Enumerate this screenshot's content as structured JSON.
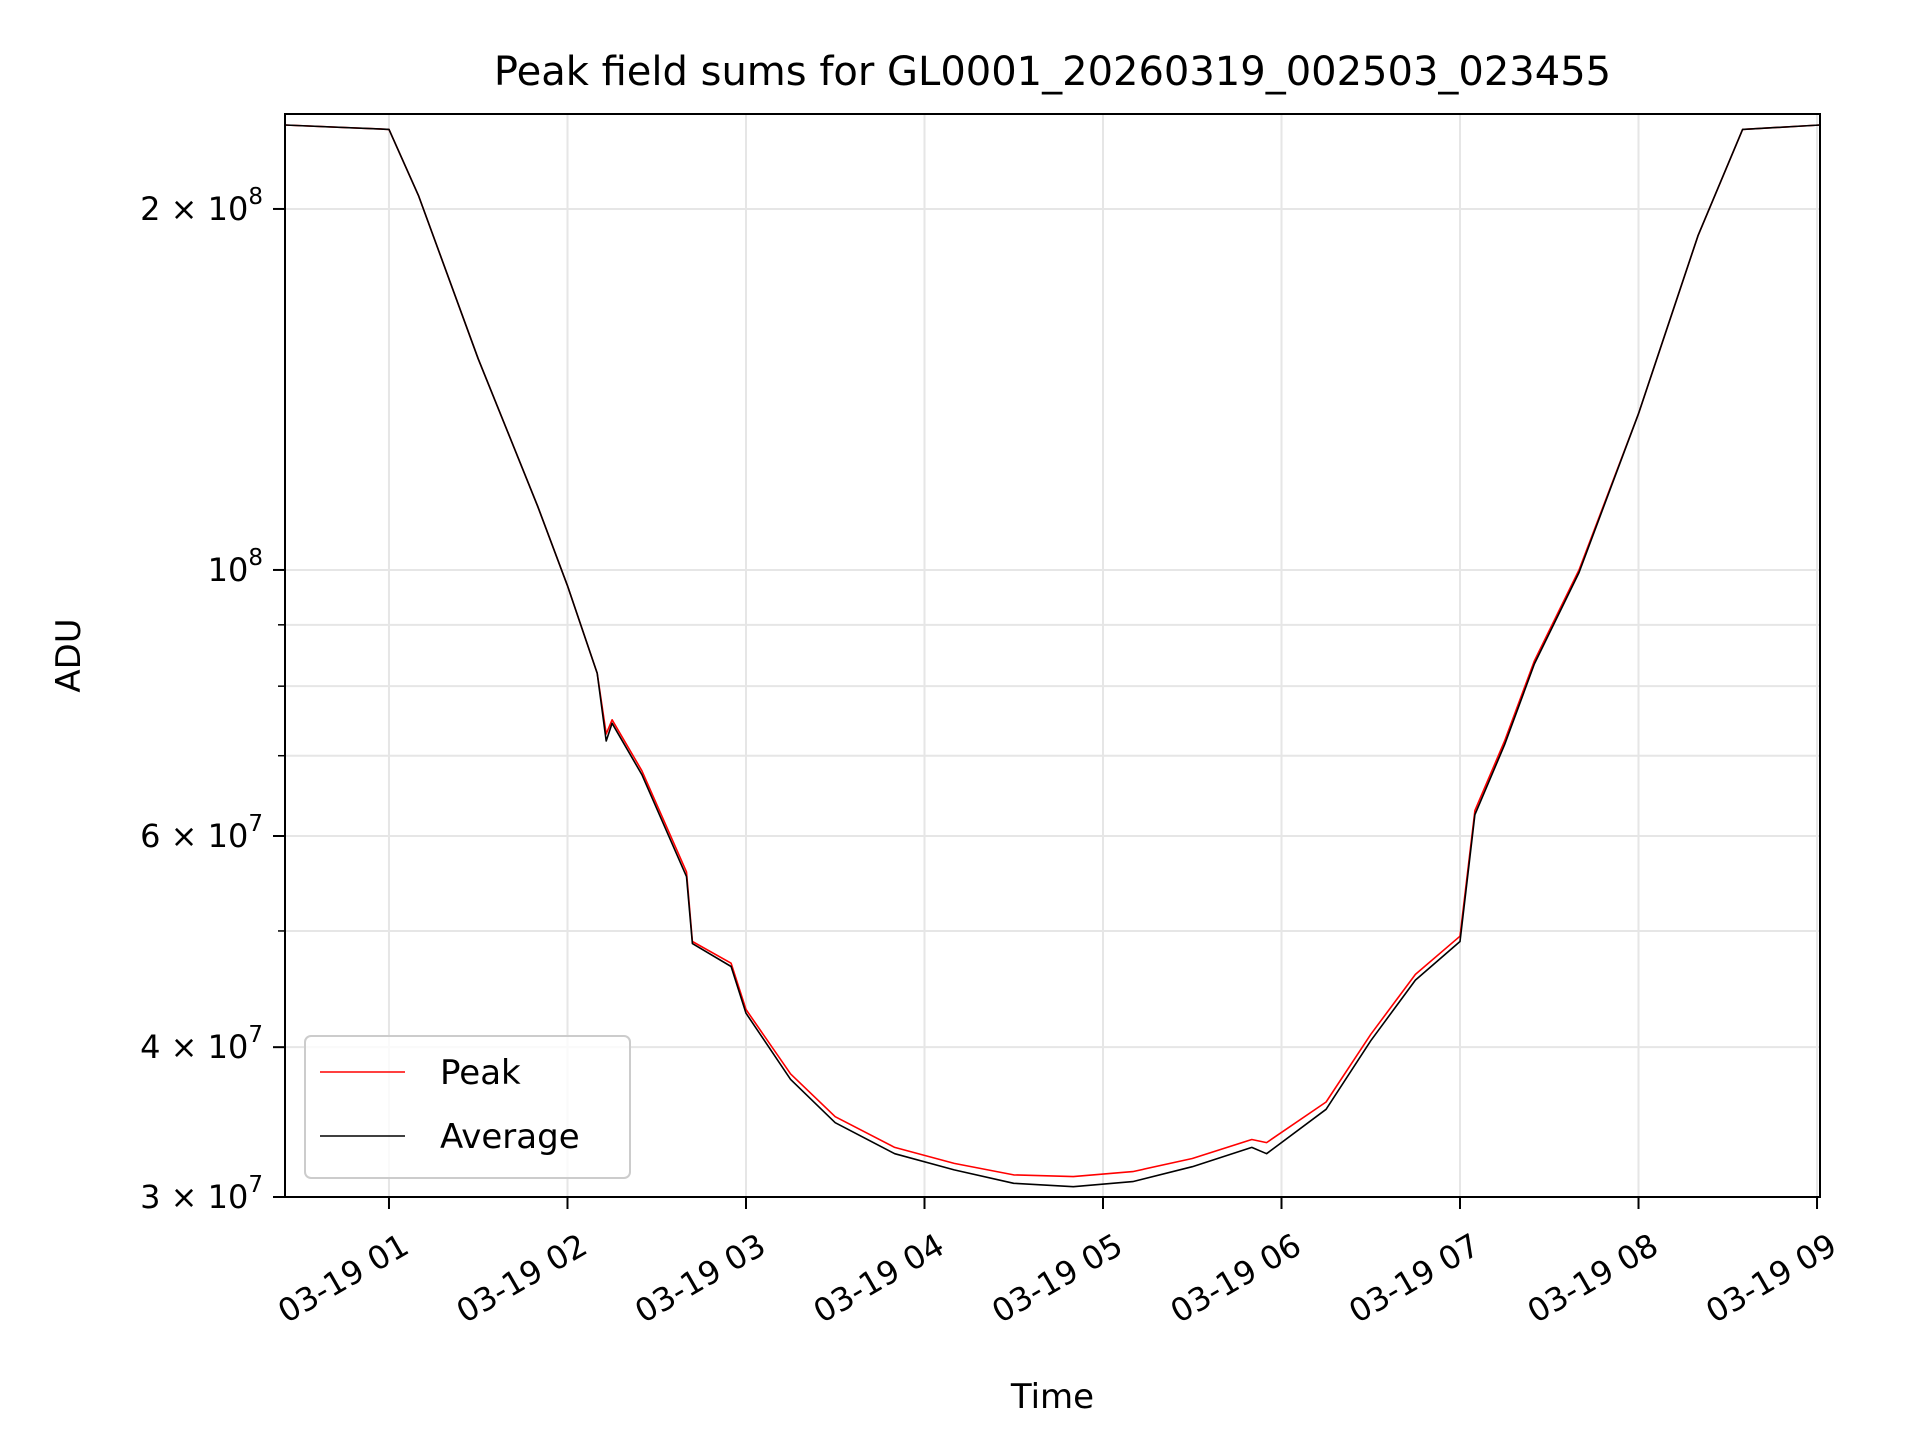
{
  "chart_data": {
    "type": "line",
    "title": "Peak field sums for GL0001_20260319_002503_023455",
    "xlabel": "Time",
    "ylabel": "ADU",
    "x_scale": "time",
    "y_scale": "log",
    "xlim": [
      "2026-03-19T00:25:03",
      "2026-03-19T09:01:00"
    ],
    "ylim": [
      30000000,
      240000000
    ],
    "x_ticks": [
      {
        "value": "2026-03-19T01:00",
        "label": "03-19 01"
      },
      {
        "value": "2026-03-19T02:00",
        "label": "03-19 02"
      },
      {
        "value": "2026-03-19T03:00",
        "label": "03-19 03"
      },
      {
        "value": "2026-03-19T04:00",
        "label": "03-19 04"
      },
      {
        "value": "2026-03-19T05:00",
        "label": "03-19 05"
      },
      {
        "value": "2026-03-19T06:00",
        "label": "03-19 06"
      },
      {
        "value": "2026-03-19T07:00",
        "label": "03-19 07"
      },
      {
        "value": "2026-03-19T08:00",
        "label": "03-19 08"
      },
      {
        "value": "2026-03-19T09:00",
        "label": "03-19 09"
      }
    ],
    "y_major_ticks": [
      {
        "value": 30000000,
        "mantissa": "3",
        "exponent": "7"
      },
      {
        "value": 40000000,
        "mantissa": "4",
        "exponent": "7"
      },
      {
        "value": 60000000,
        "mantissa": "6",
        "exponent": "7"
      },
      {
        "value": 100000000,
        "mantissa": "",
        "exponent": "8"
      },
      {
        "value": 200000000,
        "mantissa": "2",
        "exponent": "8"
      }
    ],
    "y_minor_ticks": [
      50000000,
      70000000,
      80000000,
      90000000
    ],
    "grid": true,
    "legend_position": "lower-left",
    "series": [
      {
        "name": "Peak",
        "color": "#ff0000",
        "x": [
          "2026-03-19T00:25",
          "2026-03-19T01:00",
          "2026-03-19T01:10",
          "2026-03-19T01:30",
          "2026-03-19T01:50",
          "2026-03-19T02:00",
          "2026-03-19T02:10",
          "2026-03-19T02:13",
          "2026-03-19T02:15",
          "2026-03-19T02:25",
          "2026-03-19T02:40",
          "2026-03-19T02:42",
          "2026-03-19T02:55",
          "2026-03-19T03:00",
          "2026-03-19T03:15",
          "2026-03-19T03:30",
          "2026-03-19T03:50",
          "2026-03-19T04:10",
          "2026-03-19T04:30",
          "2026-03-19T04:50",
          "2026-03-19T05:10",
          "2026-03-19T05:30",
          "2026-03-19T05:50",
          "2026-03-19T05:55",
          "2026-03-19T06:15",
          "2026-03-19T06:30",
          "2026-03-19T06:45",
          "2026-03-19T07:00",
          "2026-03-19T07:05",
          "2026-03-19T07:15",
          "2026-03-19T07:25",
          "2026-03-19T07:40",
          "2026-03-19T08:00",
          "2026-03-19T08:20",
          "2026-03-19T08:35",
          "2026-03-19T09:01"
        ],
        "y": [
          235000000,
          233000000,
          205000000,
          150000000,
          113000000,
          97000000,
          82000000,
          73000000,
          75000000,
          68000000,
          56000000,
          49000000,
          47000000,
          43000000,
          38000000,
          35000000,
          33000000,
          32000000,
          31300000,
          31200000,
          31500000,
          32300000,
          33500000,
          33300000,
          36000000,
          41000000,
          46000000,
          49500000,
          63000000,
          72000000,
          84000000,
          100000000,
          135000000,
          190000000,
          233000000,
          235000000
        ]
      },
      {
        "name": "Average",
        "color": "#000000",
        "x": [
          "2026-03-19T00:25",
          "2026-03-19T01:00",
          "2026-03-19T01:10",
          "2026-03-19T01:30",
          "2026-03-19T01:50",
          "2026-03-19T02:00",
          "2026-03-19T02:10",
          "2026-03-19T02:13",
          "2026-03-19T02:15",
          "2026-03-19T02:25",
          "2026-03-19T02:40",
          "2026-03-19T02:42",
          "2026-03-19T02:55",
          "2026-03-19T03:00",
          "2026-03-19T03:15",
          "2026-03-19T03:30",
          "2026-03-19T03:50",
          "2026-03-19T04:10",
          "2026-03-19T04:30",
          "2026-03-19T04:50",
          "2026-03-19T05:10",
          "2026-03-19T05:30",
          "2026-03-19T05:50",
          "2026-03-19T05:55",
          "2026-03-19T06:15",
          "2026-03-19T06:30",
          "2026-03-19T06:45",
          "2026-03-19T07:00",
          "2026-03-19T07:05",
          "2026-03-19T07:15",
          "2026-03-19T07:25",
          "2026-03-19T07:40",
          "2026-03-19T08:00",
          "2026-03-19T08:20",
          "2026-03-19T08:35",
          "2026-03-19T09:01"
        ],
        "y": [
          235000000,
          233000000,
          205000000,
          150000000,
          113000000,
          97000000,
          82000000,
          72000000,
          74500000,
          67500000,
          55500000,
          48800000,
          46700000,
          42700000,
          37600000,
          34600000,
          32600000,
          31600000,
          30800000,
          30600000,
          30900000,
          31800000,
          33000000,
          32600000,
          35500000,
          40500000,
          45500000,
          49000000,
          62500000,
          71500000,
          83500000,
          99500000,
          135000000,
          190000000,
          233000000,
          235000000
        ]
      }
    ]
  }
}
